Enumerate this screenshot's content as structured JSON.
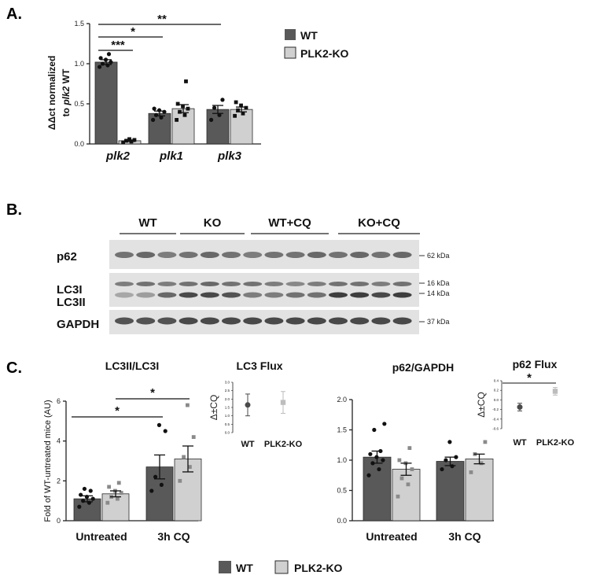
{
  "panel_labels": {
    "a": "A.",
    "b": "B.",
    "c": "C."
  },
  "colors": {
    "wt": "#595959",
    "ko": "#d0d0d0",
    "edge": "#2a2a2a"
  },
  "legend_a": {
    "wt": "WT",
    "ko": "PLK2-KO"
  },
  "legend_c": {
    "wt": "WT",
    "ko": "PLK2-KO"
  },
  "blot": {
    "groups": [
      "WT",
      "KO",
      "WT+CQ",
      "KO+CQ"
    ],
    "rows": [
      "p62",
      "LC3I",
      "LC3II",
      "GAPDH"
    ],
    "sizes": [
      "62 kDa",
      "16 kDa",
      "14 kDa",
      "37 kDa"
    ]
  },
  "chart_data": [
    {
      "type": "bar",
      "panel": "A",
      "ylabel": "ΔΔct normalized to plk2 WT",
      "ylabel_parts": [
        "ΔΔct normalized",
        "to ",
        "plk2",
        " WT"
      ],
      "yticks": [
        "0.0",
        "0.5",
        "1.0",
        "1.5"
      ],
      "ylim": [
        0,
        1.5
      ],
      "categories": [
        "plk2",
        "plk1",
        "plk3"
      ],
      "series": [
        {
          "name": "WT",
          "values": [
            1.02,
            0.38,
            0.43
          ],
          "sem": [
            0.03,
            0.03,
            0.05
          ]
        },
        {
          "name": "PLK2-KO",
          "values": [
            0.04,
            0.44,
            0.43
          ],
          "sem": [
            0.01,
            0.05,
            0.03
          ]
        }
      ],
      "points": {
        "WT": [
          [
            0.96,
            0.98,
            1.0,
            1.02,
            1.05,
            1.07,
            1.12
          ],
          [
            0.3,
            0.33,
            0.36,
            0.4,
            0.42,
            0.44
          ],
          [
            0.3,
            0.36,
            0.45,
            0.55
          ]
        ],
        "PLK2-KO": [
          [
            0.02,
            0.03,
            0.04,
            0.05,
            0.06
          ],
          [
            0.3,
            0.36,
            0.4,
            0.44,
            0.47,
            0.5,
            0.78
          ],
          [
            0.35,
            0.38,
            0.42,
            0.45,
            0.48,
            0.52
          ]
        ]
      },
      "significance": [
        {
          "label": "***",
          "from": "plk2 WT",
          "to": "plk2 PLK2-KO"
        },
        {
          "label": "*",
          "from": "plk2 WT",
          "to": "plk1 WT"
        },
        {
          "label": "**",
          "from": "plk2 WT",
          "to": "plk3 WT"
        }
      ]
    },
    {
      "type": "bar",
      "panel": "C",
      "title": "LC3II/LC3I",
      "ylabel": "Fold of WT-untreated mice (AU)",
      "yticks": [
        "0",
        "2",
        "4",
        "6"
      ],
      "ylim": [
        0,
        6
      ],
      "categories": [
        "Untreated",
        "3h CQ"
      ],
      "series": [
        {
          "name": "WT",
          "values": [
            1.1,
            2.7
          ],
          "sem": [
            0.15,
            0.6
          ]
        },
        {
          "name": "PLK2-KO",
          "values": [
            1.35,
            3.1
          ],
          "sem": [
            0.15,
            0.65
          ]
        }
      ],
      "points": {
        "WT": [
          [
            0.7,
            0.9,
            1.0,
            1.1,
            1.2,
            1.3,
            1.5,
            1.6
          ],
          [
            1.5,
            1.8,
            2.2,
            4.5,
            4.8
          ]
        ],
        "PLK2-KO": [
          [
            0.9,
            1.1,
            1.2,
            1.4,
            1.5,
            1.7,
            1.9
          ],
          [
            2.0,
            2.7,
            3.2,
            4.2,
            5.8
          ]
        ]
      },
      "significance": [
        {
          "label": "*",
          "from": "Untreated WT",
          "to": "3h CQ WT"
        },
        {
          "label": "*",
          "from": "Untreated PLK2-KO",
          "to": "3h CQ PLK2-KO"
        }
      ]
    },
    {
      "type": "scatter",
      "panel": "C",
      "title": "LC3 Flux",
      "ylabel": "Δ±CQ",
      "yticks": [
        "3.0",
        "2.5",
        "2.0",
        "1.5",
        "1.0",
        "0.5",
        "0.0"
      ],
      "ylim": [
        0,
        3
      ],
      "categories": [
        "WT",
        "PLK2-KO"
      ],
      "values": [
        1.65,
        1.8
      ],
      "err": [
        0.65,
        0.65
      ]
    },
    {
      "type": "bar",
      "panel": "C",
      "title": "p62/GAPDH",
      "yticks": [
        "0.0",
        "0.5",
        "1.0",
        "1.5",
        "2.0"
      ],
      "ylim": [
        0,
        2
      ],
      "categories": [
        "Untreated",
        "3h CQ"
      ],
      "series": [
        {
          "name": "WT",
          "values": [
            1.05,
            0.98
          ],
          "sem": [
            0.1,
            0.07
          ]
        },
        {
          "name": "PLK2-KO",
          "values": [
            0.85,
            1.02
          ],
          "sem": [
            0.1,
            0.08
          ]
        }
      ],
      "points": {
        "WT": [
          [
            0.75,
            0.85,
            0.95,
            1.0,
            1.05,
            1.1,
            1.15,
            1.5,
            1.6
          ],
          [
            0.85,
            0.9,
            1.0,
            1.05,
            1.3
          ]
        ],
        "PLK2-KO": [
          [
            0.4,
            0.6,
            0.7,
            0.85,
            0.95,
            1.0,
            1.2
          ],
          [
            0.8,
            0.95,
            1.1,
            1.3
          ]
        ]
      }
    },
    {
      "type": "scatter",
      "panel": "C",
      "title": "p62 Flux",
      "ylabel": "Δ±CQ",
      "yticks": [
        "0.4",
        "0.2",
        "0.0",
        "-0.2",
        "-0.4",
        "-0.6"
      ],
      "ylim": [
        -0.6,
        0.4
      ],
      "categories": [
        "WT",
        "PLK2-KO"
      ],
      "values": [
        -0.15,
        0.18
      ],
      "err": [
        0.08,
        0.08
      ],
      "significance": [
        {
          "label": "*",
          "from": "WT",
          "to": "PLK2-KO"
        }
      ]
    }
  ]
}
